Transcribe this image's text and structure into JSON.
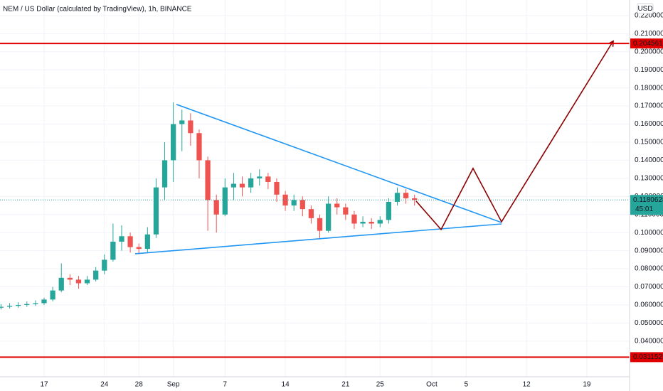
{
  "chart_data": {
    "type": "candlestick",
    "title": "NEM / US Dollar (calculated by TradingView), 1h, BINANCE",
    "currency": "USD",
    "x": [
      -5,
      -4,
      -3,
      -2,
      -1,
      0,
      1,
      2,
      3,
      4,
      5,
      6,
      7,
      8,
      9,
      10,
      11,
      12,
      13,
      14,
      15,
      16,
      17,
      18,
      19,
      20,
      21,
      22,
      23,
      24,
      25,
      26,
      27,
      28,
      29,
      30,
      31,
      32,
      33,
      34,
      35,
      36,
      37,
      38,
      39,
      40,
      41,
      42,
      43
    ],
    "open": [
      0.0585,
      0.059,
      0.0595,
      0.06,
      0.0605,
      0.061,
      0.063,
      0.068,
      0.075,
      0.074,
      0.072,
      0.074,
      0.079,
      0.085,
      0.095,
      0.098,
      0.092,
      0.091,
      0.099,
      0.125,
      0.14,
      0.16,
      0.162,
      0.155,
      0.14,
      0.118,
      0.11,
      0.125,
      0.127,
      0.125,
      0.13,
      0.131,
      0.128,
      0.121,
      0.115,
      0.118,
      0.113,
      0.108,
      0.101,
      0.116,
      0.114,
      0.11,
      0.105,
      0.106,
      0.105,
      0.107,
      0.117,
      0.122,
      0.119
    ],
    "high": [
      0.0605,
      0.061,
      0.0615,
      0.062,
      0.0625,
      0.064,
      0.07,
      0.083,
      0.077,
      0.076,
      0.076,
      0.081,
      0.088,
      0.105,
      0.104,
      0.1,
      0.094,
      0.103,
      0.13,
      0.15,
      0.172,
      0.168,
      0.166,
      0.157,
      0.142,
      0.121,
      0.13,
      0.133,
      0.131,
      0.133,
      0.135,
      0.133,
      0.13,
      0.123,
      0.121,
      0.12,
      0.115,
      0.11,
      0.12,
      0.119,
      0.116,
      0.112,
      0.109,
      0.108,
      0.109,
      0.119,
      0.125,
      0.124,
      0.121
    ],
    "low": [
      0.0575,
      0.058,
      0.0585,
      0.059,
      0.0595,
      0.06,
      0.062,
      0.067,
      0.071,
      0.069,
      0.071,
      0.073,
      0.077,
      0.084,
      0.09,
      0.089,
      0.088,
      0.089,
      0.097,
      0.118,
      0.128,
      0.145,
      0.148,
      0.13,
      0.101,
      0.1,
      0.109,
      0.118,
      0.12,
      0.122,
      0.126,
      0.124,
      0.117,
      0.112,
      0.112,
      0.109,
      0.105,
      0.097,
      0.1,
      0.11,
      0.107,
      0.102,
      0.103,
      0.102,
      0.103,
      0.105,
      0.115,
      0.116,
      0.115
    ],
    "close": [
      0.059,
      0.0595,
      0.06,
      0.0605,
      0.061,
      0.063,
      0.068,
      0.075,
      0.074,
      0.072,
      0.074,
      0.079,
      0.085,
      0.095,
      0.098,
      0.092,
      0.091,
      0.099,
      0.125,
      0.14,
      0.16,
      0.162,
      0.155,
      0.14,
      0.118,
      0.11,
      0.125,
      0.127,
      0.125,
      0.13,
      0.131,
      0.128,
      0.121,
      0.115,
      0.118,
      0.113,
      0.108,
      0.101,
      0.116,
      0.114,
      0.11,
      0.105,
      0.106,
      0.105,
      0.107,
      0.117,
      0.122,
      0.119,
      0.118
    ],
    "up_color": "#26a69a",
    "down_color": "#ef5350",
    "xlim": [
      -5.12,
      67.96
    ],
    "xticks": [
      {
        "value": 0,
        "label": "17"
      },
      {
        "value": 7,
        "label": "24"
      },
      {
        "value": 11,
        "label": "28"
      },
      {
        "value": 15,
        "label": "Sep"
      },
      {
        "value": 21,
        "label": "7"
      },
      {
        "value": 28,
        "label": "14"
      },
      {
        "value": 35,
        "label": "21"
      },
      {
        "value": 39,
        "label": "25"
      },
      {
        "value": 45,
        "label": "Oct"
      },
      {
        "value": 49,
        "label": "5"
      },
      {
        "value": 56,
        "label": "12"
      },
      {
        "value": 63,
        "label": "19"
      }
    ],
    "ylim": [
      0.0203,
      0.2286
    ],
    "yticks": [
      {
        "value": 0.04,
        "label": "0.04000000"
      },
      {
        "value": 0.05,
        "label": "0.05000000"
      },
      {
        "value": 0.06,
        "label": "0.06000000"
      },
      {
        "value": 0.07,
        "label": "0.07000000"
      },
      {
        "value": 0.08,
        "label": "0.08000000"
      },
      {
        "value": 0.09,
        "label": "0.09000000"
      },
      {
        "value": 0.1,
        "label": "0.10000000"
      },
      {
        "value": 0.11,
        "label": "0.11000000"
      },
      {
        "value": 0.12,
        "label": "0.12000000"
      },
      {
        "value": 0.13,
        "label": "0.13000000"
      },
      {
        "value": 0.14,
        "label": "0.14000000"
      },
      {
        "value": 0.15,
        "label": "0.15000000"
      },
      {
        "value": 0.16,
        "label": "0.16000000"
      },
      {
        "value": 0.17,
        "label": "0.17000000"
      },
      {
        "value": 0.18,
        "label": "0.18000000"
      },
      {
        "value": 0.19,
        "label": "0.19000000"
      },
      {
        "value": 0.2,
        "label": "0.20000000"
      },
      {
        "value": 0.21,
        "label": "0.21000000"
      },
      {
        "value": 0.22,
        "label": "0.22000000"
      }
    ],
    "grid": true,
    "hlines": [
      {
        "value": 0.20456154,
        "color": "#e00000"
      },
      {
        "value": 0.03115252,
        "color": "#e00000"
      }
    ],
    "last_price": {
      "value": 0.11806289,
      "countdown": "45:01",
      "color": "#26a69a"
    },
    "trendlines": [
      {
        "color": "#2196f3",
        "x": [
          15.36,
          53.1
        ],
        "y": [
          0.1709,
          0.1056
        ]
      },
      {
        "color": "#2196f3",
        "x": [
          10.57,
          53.1
        ],
        "y": [
          0.0883,
          0.1048
        ]
      },
      {
        "color": "#8b0000",
        "x": [
          43.19,
          46.08,
          49.79,
          53.1,
          66.06
        ],
        "y": [
          0.1174,
          0.1017,
          0.1355,
          0.106,
          0.2059
        ],
        "arrow": true
      }
    ]
  }
}
